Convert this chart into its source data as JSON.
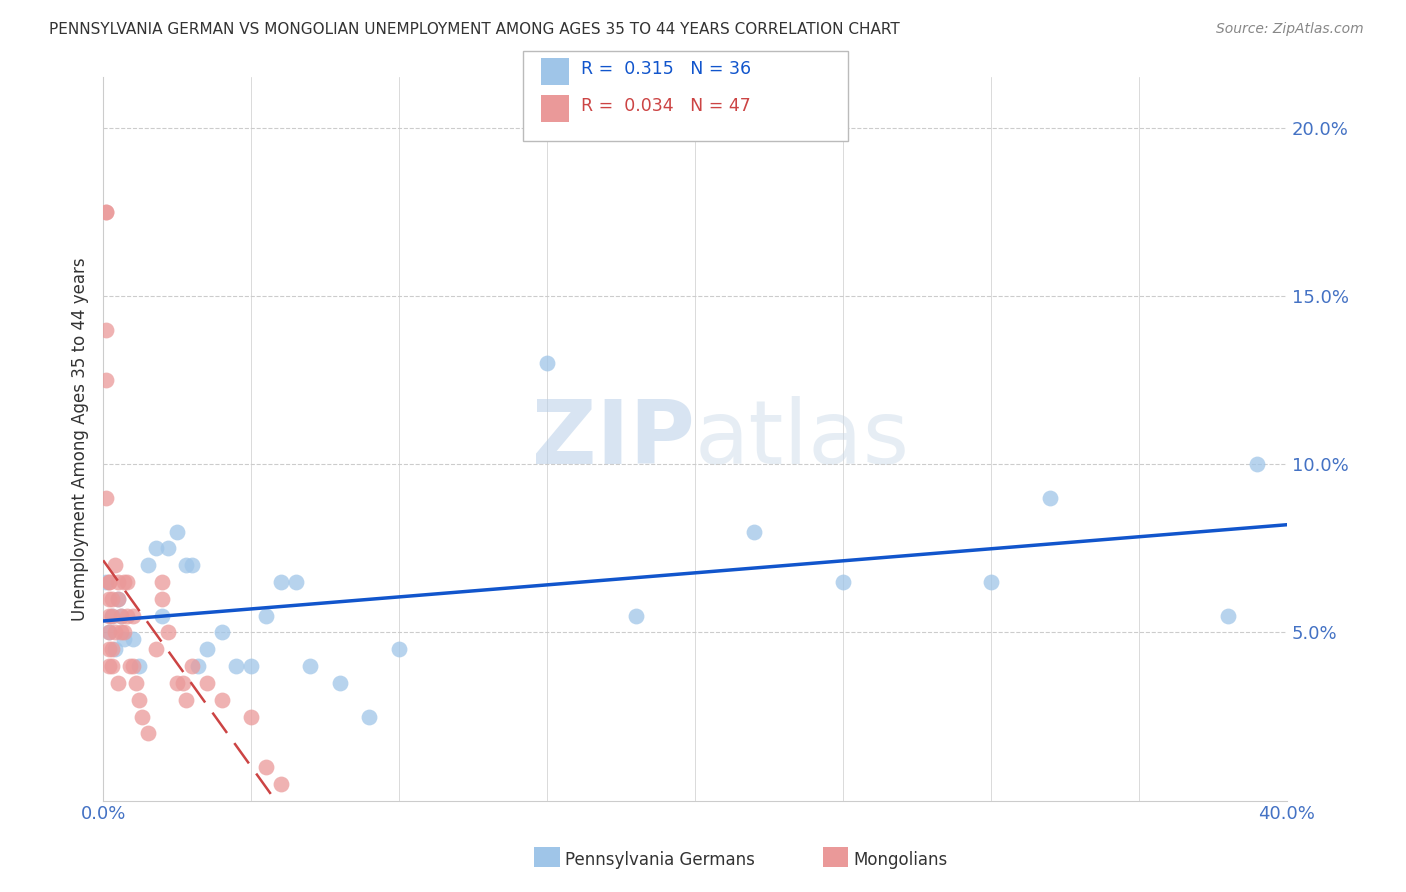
{
  "title": "PENNSYLVANIA GERMAN VS MONGOLIAN UNEMPLOYMENT AMONG AGES 35 TO 44 YEARS CORRELATION CHART",
  "source": "Source: ZipAtlas.com",
  "ylabel": "Unemployment Among Ages 35 to 44 years",
  "xlim": [
    0.0,
    0.4
  ],
  "ylim": [
    0.0,
    0.215
  ],
  "yticks": [
    0.05,
    0.1,
    0.15,
    0.2
  ],
  "ytick_labels": [
    "5.0%",
    "10.0%",
    "15.0%",
    "20.0%"
  ],
  "xticks": [
    0.0,
    0.05,
    0.1,
    0.15,
    0.2,
    0.25,
    0.3,
    0.35,
    0.4
  ],
  "grid_color": "#cccccc",
  "background_color": "#ffffff",
  "tick_color": "#4472c4",
  "legend1_color": "#9fc5e8",
  "legend2_color": "#ea9999",
  "line1_color": "#1155cc",
  "line2_color": "#cc4444",
  "watermark_color": "#dce9f5",
  "pa_german_x": [
    0.001,
    0.002,
    0.003,
    0.004,
    0.005,
    0.006,
    0.007,
    0.01,
    0.012,
    0.015,
    0.018,
    0.02,
    0.022,
    0.025,
    0.028,
    0.03,
    0.032,
    0.035,
    0.04,
    0.045,
    0.05,
    0.055,
    0.06,
    0.065,
    0.07,
    0.08,
    0.09,
    0.1,
    0.15,
    0.18,
    0.22,
    0.25,
    0.3,
    0.32,
    0.38,
    0.39
  ],
  "pa_german_y": [
    0.065,
    0.05,
    0.055,
    0.045,
    0.06,
    0.055,
    0.048,
    0.048,
    0.04,
    0.07,
    0.075,
    0.055,
    0.075,
    0.08,
    0.07,
    0.07,
    0.04,
    0.045,
    0.05,
    0.04,
    0.04,
    0.055,
    0.065,
    0.065,
    0.04,
    0.035,
    0.025,
    0.045,
    0.13,
    0.055,
    0.08,
    0.065,
    0.065,
    0.09,
    0.055,
    0.1
  ],
  "mongolian_x": [
    0.001,
    0.001,
    0.001,
    0.001,
    0.001,
    0.002,
    0.002,
    0.002,
    0.002,
    0.002,
    0.002,
    0.002,
    0.003,
    0.003,
    0.003,
    0.003,
    0.004,
    0.004,
    0.005,
    0.005,
    0.005,
    0.006,
    0.006,
    0.007,
    0.007,
    0.008,
    0.008,
    0.009,
    0.01,
    0.01,
    0.011,
    0.012,
    0.013,
    0.015,
    0.018,
    0.02,
    0.02,
    0.022,
    0.025,
    0.027,
    0.028,
    0.03,
    0.035,
    0.04,
    0.05,
    0.055,
    0.06
  ],
  "mongolian_y": [
    0.175,
    0.175,
    0.14,
    0.125,
    0.09,
    0.065,
    0.065,
    0.06,
    0.055,
    0.05,
    0.045,
    0.04,
    0.06,
    0.055,
    0.045,
    0.04,
    0.07,
    0.05,
    0.065,
    0.06,
    0.035,
    0.055,
    0.05,
    0.065,
    0.05,
    0.065,
    0.055,
    0.04,
    0.055,
    0.04,
    0.035,
    0.03,
    0.025,
    0.02,
    0.045,
    0.065,
    0.06,
    0.05,
    0.035,
    0.035,
    0.03,
    0.04,
    0.035,
    0.03,
    0.025,
    0.01,
    0.005
  ]
}
